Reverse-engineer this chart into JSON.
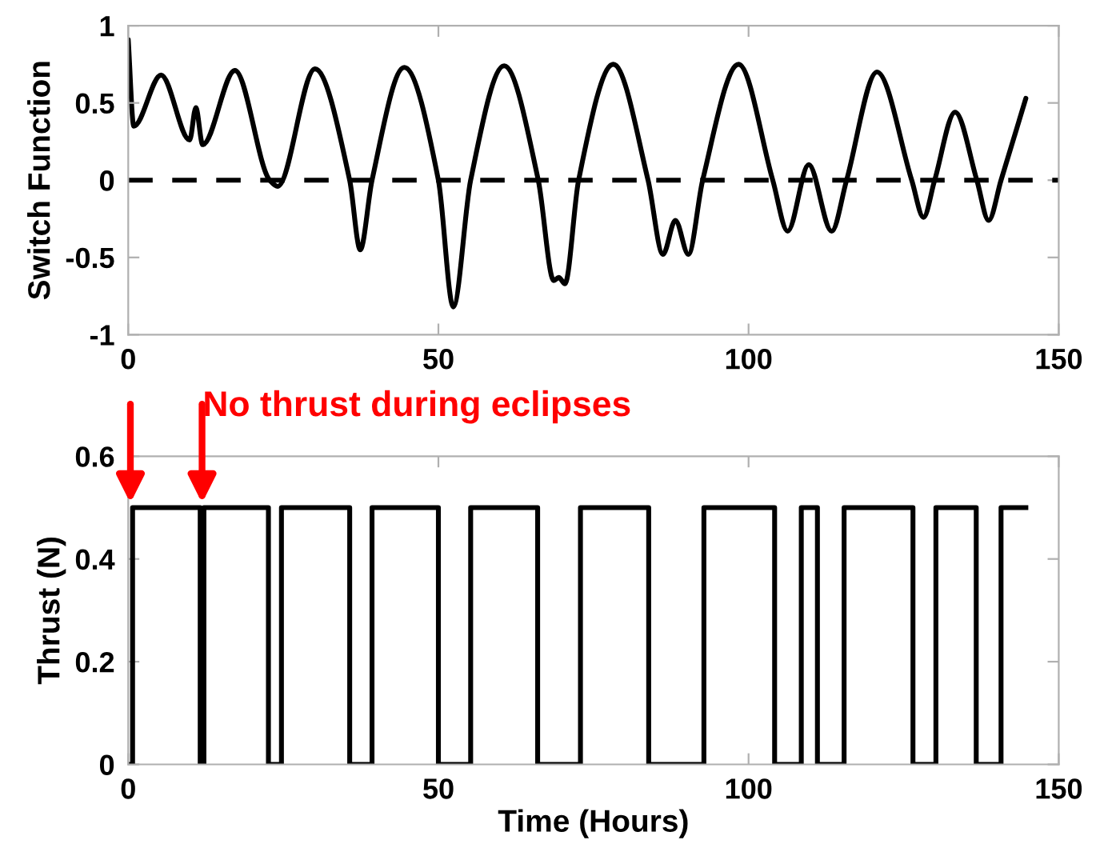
{
  "chart_data": [
    {
      "type": "line",
      "ylabel": "Switch Function",
      "xlim": [
        0,
        150
      ],
      "ylim": [
        -1,
        1
      ],
      "xticks": [
        0,
        50,
        100,
        150
      ],
      "yticks": [
        -1,
        -0.5,
        0,
        0.5,
        1
      ],
      "grid": false,
      "legend": false,
      "marker": "none",
      "line_style": "solid",
      "ref_lines": [
        {
          "axis": "y",
          "value": 0,
          "color": "#000000",
          "line_style": "dashed"
        }
      ],
      "series": [
        {
          "color": "#000000",
          "x": [
            0,
            0.9,
            5.3,
            9.9,
            10.9,
            12.0,
            17.2,
            22.8,
            24.1,
            30.1,
            35.7,
            37.4,
            39.3,
            44.5,
            50.0,
            52.4,
            55.2,
            60.6,
            66.1,
            68.6,
            69.4,
            70.4,
            72.6,
            78.2,
            83.8,
            86.2,
            88.2,
            90.3,
            92.6,
            98.4,
            103.9,
            106.3,
            109.7,
            113.4,
            115.8,
            120.7,
            126.3,
            128.2,
            130.0,
            133.3,
            136.8,
            138.7,
            140.7,
            144.7
          ],
          "values": [
            0.91,
            0.35,
            0.68,
            0.26,
            0.47,
            0.23,
            0.71,
            0.0,
            -0.04,
            0.72,
            0.0,
            -0.45,
            0.0,
            0.73,
            0.0,
            -0.82,
            0.0,
            0.74,
            0.0,
            -0.65,
            -0.63,
            -0.67,
            0.0,
            0.75,
            0.0,
            -0.48,
            -0.26,
            -0.48,
            0.0,
            0.75,
            0.0,
            -0.33,
            0.1,
            -0.33,
            0.0,
            0.7,
            0.0,
            -0.24,
            0.0,
            0.44,
            0.0,
            -0.26,
            0.0,
            0.53
          ]
        }
      ]
    },
    {
      "type": "step",
      "xlabel": "Time (Hours)",
      "ylabel": "Thrust (N)",
      "xlim": [
        0,
        150
      ],
      "ylim": [
        0,
        0.6
      ],
      "xticks": [
        0,
        50,
        100,
        150
      ],
      "yticks": [
        0,
        0.2,
        0.4,
        0.6
      ],
      "grid": false,
      "legend": false,
      "marker": "none",
      "line_style": "solid",
      "annotations": [
        "No thrust during eclipses"
      ],
      "series": [
        {
          "color": "#000000",
          "x": [
            0,
            0.7,
            11.6,
            12.2,
            22.6,
            24.7,
            35.7,
            39.3,
            50.0,
            55.2,
            66.0,
            72.9,
            83.9,
            92.8,
            104.2,
            108.5,
            111.1,
            115.4,
            126.5,
            130.2,
            136.7,
            140.7,
            144.7
          ],
          "values": [
            0,
            0.5,
            0,
            0.5,
            0,
            0.5,
            0,
            0.5,
            0,
            0.5,
            0,
            0.5,
            0,
            0.5,
            0,
            0.5,
            0,
            0.5,
            0,
            0.5,
            0,
            0.5,
            0.5
          ]
        }
      ]
    }
  ]
}
